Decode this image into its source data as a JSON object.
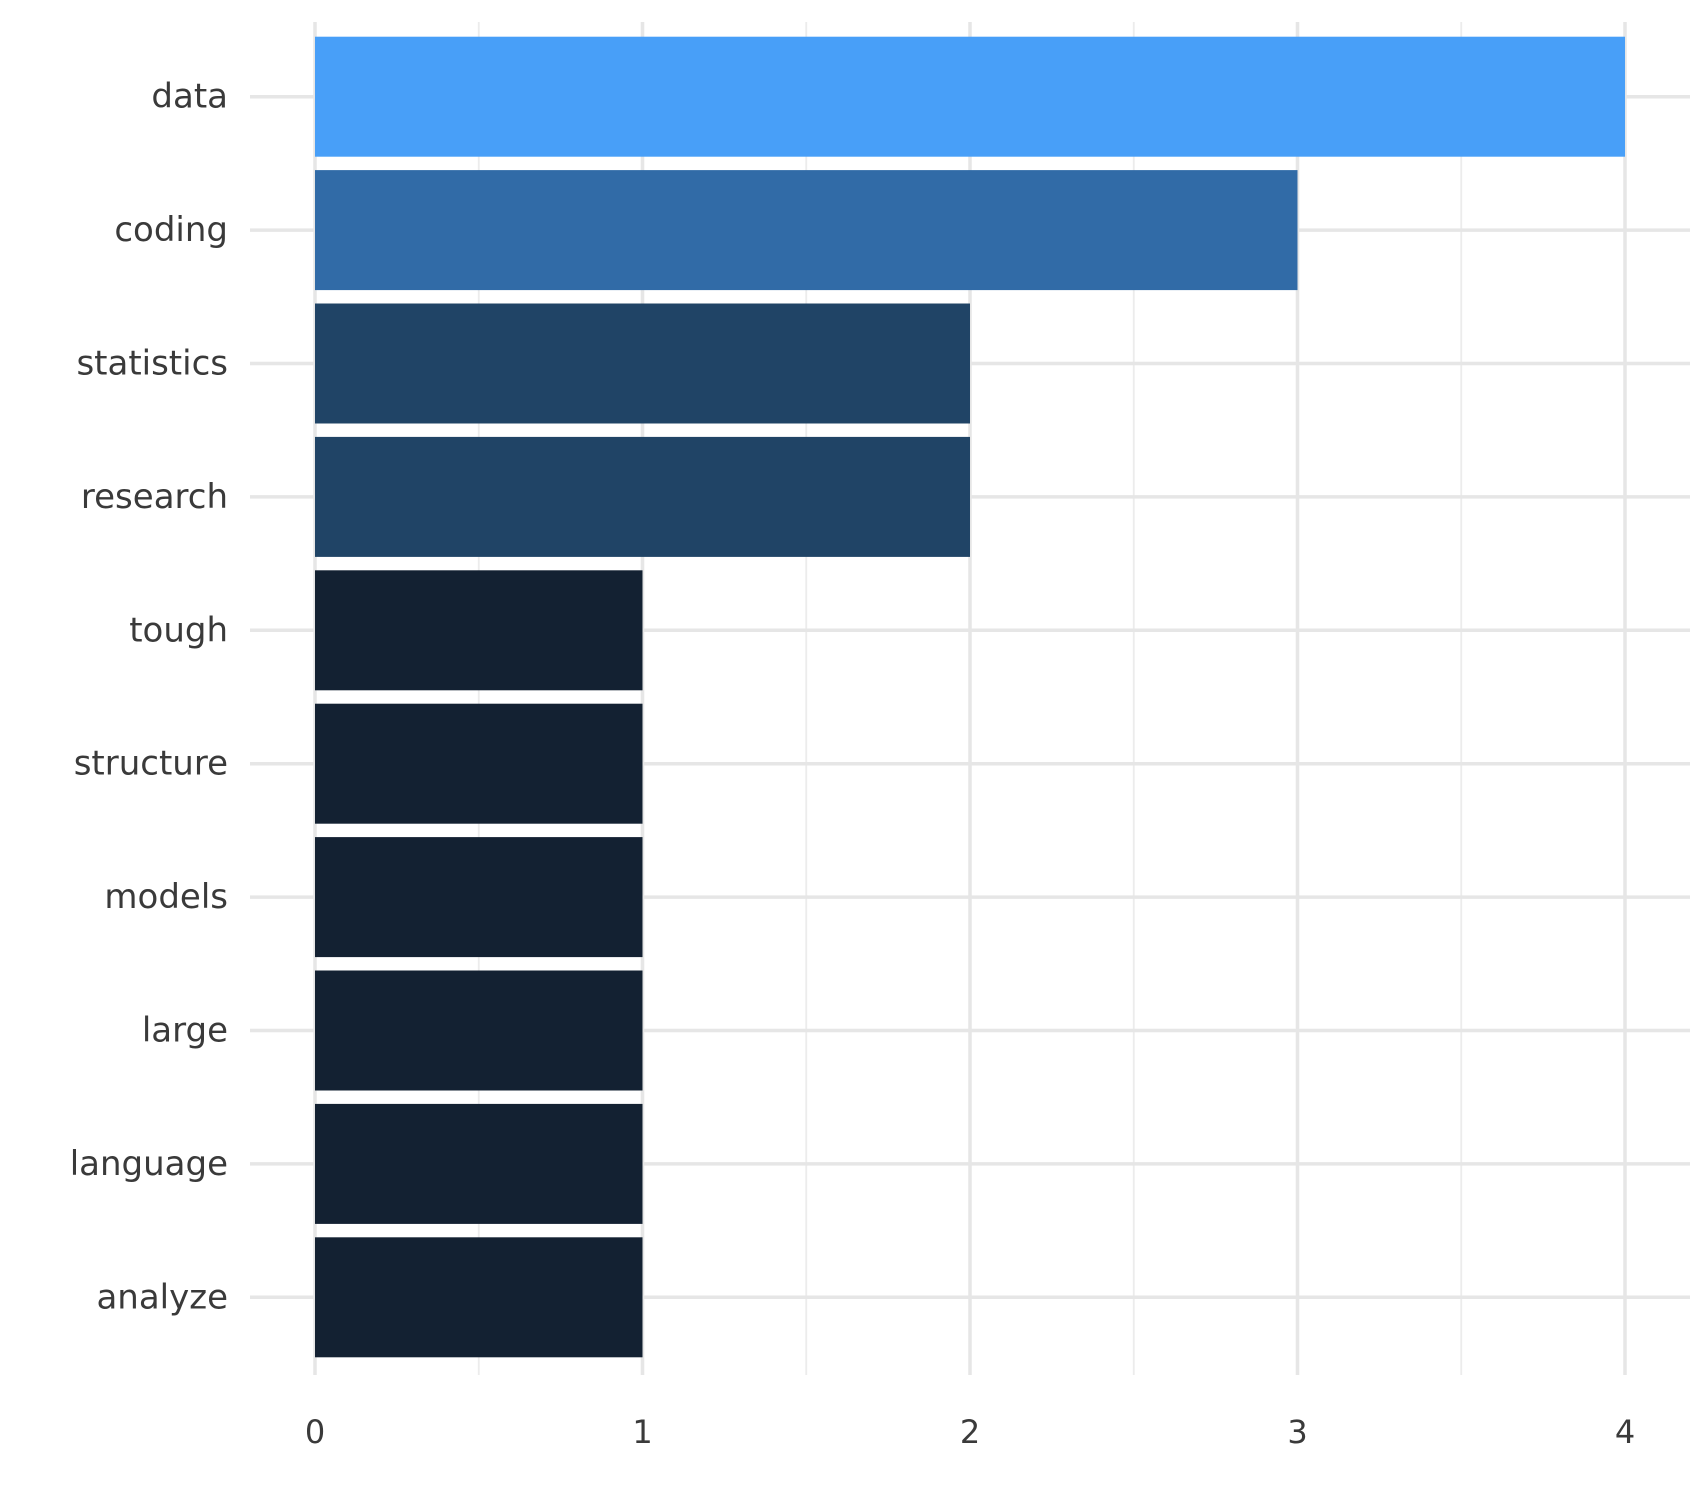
{
  "chart_data": {
    "type": "bar",
    "orientation": "horizontal",
    "categories": [
      "data",
      "coding",
      "statistics",
      "research",
      "tough",
      "structure",
      "models",
      "large",
      "language",
      "analyze"
    ],
    "values": [
      4,
      3,
      2,
      2,
      1,
      1,
      1,
      1,
      1,
      1
    ],
    "title": "",
    "xlabel": "",
    "ylabel": "",
    "xlim": [
      0,
      4
    ],
    "x_ticks": [
      0,
      1,
      2,
      3,
      4
    ],
    "x_tick_labels": [
      "0",
      "1",
      "2",
      "3",
      "4"
    ],
    "grid": true,
    "legend": "none",
    "color_scale": {
      "low": "#132132",
      "high": "#56B1F7",
      "value_colors": {
        "1": "#132132",
        "2": "#204466",
        "3": "#316BA7",
        "4": "#489FF8"
      }
    }
  }
}
